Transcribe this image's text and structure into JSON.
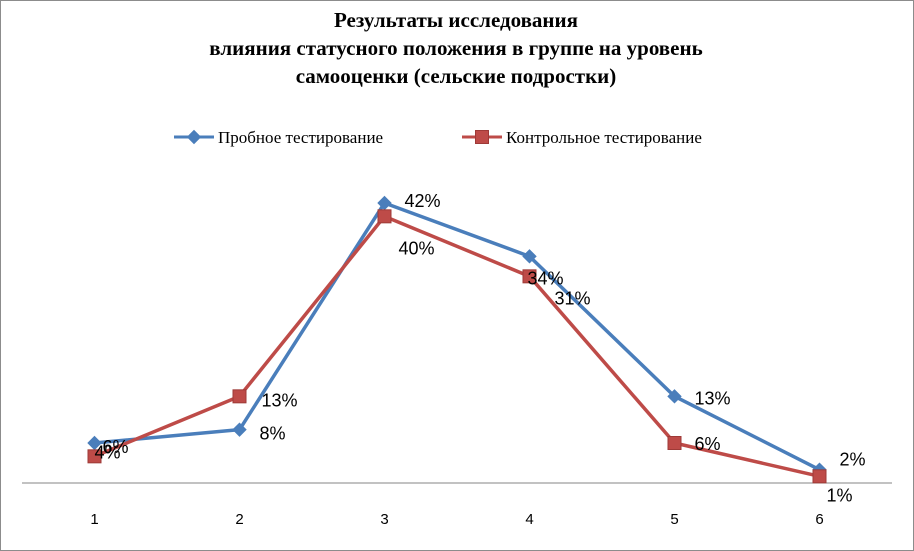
{
  "chart_data": {
    "type": "line",
    "title_lines": [
      "Результаты исследования",
      "влияния статусного положения в группе на уровень",
      "самооценки (сельские подростки)"
    ],
    "categories": [
      "1",
      "2",
      "3",
      "4",
      "5",
      "6"
    ],
    "ylim": [
      0,
      45
    ],
    "grid": false,
    "legend_position": "top",
    "series": [
      {
        "name": "Пробное тестирование",
        "values": [
          6,
          8,
          42,
          34,
          13,
          2
        ],
        "labels": [
          "6%",
          "8%",
          "42%",
          "34%",
          "13%",
          "2%"
        ],
        "color": "#4a7ebb",
        "marker": "diamond"
      },
      {
        "name": "Контрольное тестирование",
        "values": [
          4,
          13,
          40,
          31,
          6,
          1
        ],
        "labels": [
          "4%",
          "13%",
          "40%",
          "31%",
          "6%",
          "1%"
        ],
        "color": "#be4b48",
        "marker": "square"
      }
    ]
  }
}
